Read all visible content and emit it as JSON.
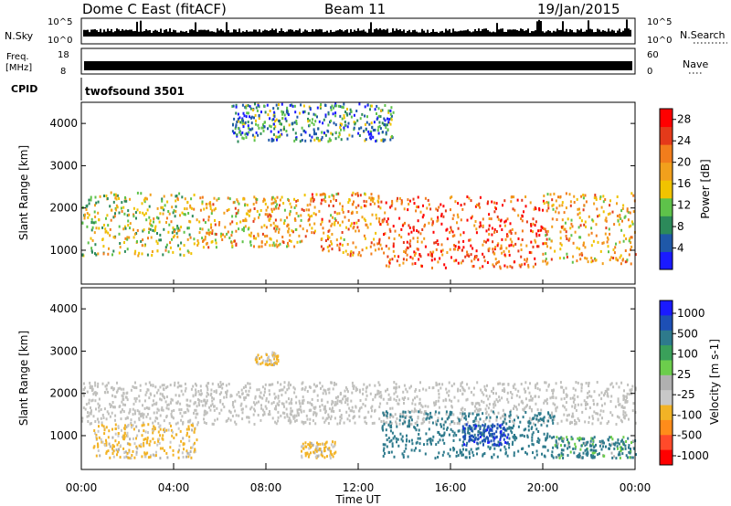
{
  "header": {
    "station": "Dome C East (fitACF)",
    "beam": "Beam 11",
    "date": "19/Jan/2015"
  },
  "strips": {
    "nsky_label": "N.Sky",
    "nsky_ticks": [
      "10^5",
      "10^0"
    ],
    "nsearch_label": "N.Search",
    "nsearch_ticks": [
      "10^5",
      "10^0"
    ],
    "freq_label": "Freq.",
    "freq_unit": "[MHz]",
    "freq_ticks": [
      "18",
      "8"
    ],
    "nave_label": "Nave",
    "nave_ticks": [
      "60",
      "0"
    ],
    "cpid_label": "CPID",
    "cpid_value": "twofsound 3501"
  },
  "colors": {
    "power_scale": [
      "#1a1aff",
      "#1f58a8",
      "#2c8a5a",
      "#5ec24a",
      "#f0c300",
      "#f2a01c",
      "#f27d1c",
      "#e43a1a",
      "#ff0000"
    ],
    "velocity_scale": [
      "#ff0000",
      "#ff4a2a",
      "#ff8c1a",
      "#f2b326",
      "#c8c8c8",
      "#b0b0b0",
      "#6ccd4c",
      "#3aa05a",
      "#2e7a8c",
      "#1d4fb5",
      "#1a1aff"
    ],
    "ground_scatter": "#c0c0bd"
  },
  "chart_data": [
    {
      "type": "heatmap",
      "panel": "power",
      "ylabel": "Slant Range [km]",
      "yticks": [
        "1000",
        "2000",
        "3000",
        "4000"
      ],
      "ylim": [
        200,
        4500
      ],
      "xlim_hours": [
        0,
        24
      ],
      "colorbar_label": "Power [dB]",
      "colorbar_ticks": [
        "4",
        "8",
        "12",
        "16",
        "20",
        "24",
        "28"
      ],
      "colorbar_range": [
        0,
        30
      ],
      "bands": [
        {
          "t_start": 0.0,
          "t_end": 5.0,
          "r_low": 900,
          "r_high": 2400,
          "level": 14
        },
        {
          "t_start": 5.0,
          "t_end": 9.5,
          "r_low": 1100,
          "r_high": 2300,
          "level": 18
        },
        {
          "t_start": 9.5,
          "t_end": 13.0,
          "r_low": 900,
          "r_high": 2400,
          "level": 20
        },
        {
          "t_start": 13.0,
          "t_end": 20.0,
          "r_low": 600,
          "r_high": 2300,
          "level": 24
        },
        {
          "t_start": 20.0,
          "t_end": 24.0,
          "r_low": 700,
          "r_high": 2400,
          "level": 18
        },
        {
          "t_start": 6.5,
          "t_end": 13.5,
          "r_low": 3600,
          "r_high": 4500,
          "level": 8
        }
      ]
    },
    {
      "type": "heatmap",
      "panel": "velocity",
      "ylabel": "Slant Range [km]",
      "yticks": [
        "1000",
        "2000",
        "3000",
        "4000"
      ],
      "ylim": [
        200,
        4500
      ],
      "xlabel": "Time UT",
      "xticks": [
        "00:00",
        "04:00",
        "08:00",
        "12:00",
        "16:00",
        "20:00",
        "00:00"
      ],
      "xlim_hours": [
        0,
        24
      ],
      "colorbar_label": "Velocity [m s-1]",
      "colorbar_ticks": [
        "1000",
        "500",
        "100",
        "25",
        "-25",
        "-100",
        "-500",
        "-1000"
      ],
      "bands": [
        {
          "t_start": 0.0,
          "t_end": 24.0,
          "r_low": 1300,
          "r_high": 2300,
          "velocity": 0,
          "ground_scatter": true
        },
        {
          "t_start": 0.5,
          "t_end": 5.0,
          "r_low": 500,
          "r_high": 1300,
          "velocity": -150
        },
        {
          "t_start": 9.5,
          "t_end": 11.0,
          "r_low": 500,
          "r_high": 900,
          "velocity": -150
        },
        {
          "t_start": 13.0,
          "t_end": 20.5,
          "r_low": 500,
          "r_high": 1600,
          "velocity": 250
        },
        {
          "t_start": 16.5,
          "t_end": 18.5,
          "r_low": 800,
          "r_high": 1300,
          "velocity": 900
        },
        {
          "t_start": 20.5,
          "t_end": 24.0,
          "r_low": 500,
          "r_high": 1000,
          "velocity": 150
        },
        {
          "t_start": 7.5,
          "t_end": 8.5,
          "r_low": 2700,
          "r_high": 3000,
          "velocity": -150
        }
      ]
    }
  ]
}
